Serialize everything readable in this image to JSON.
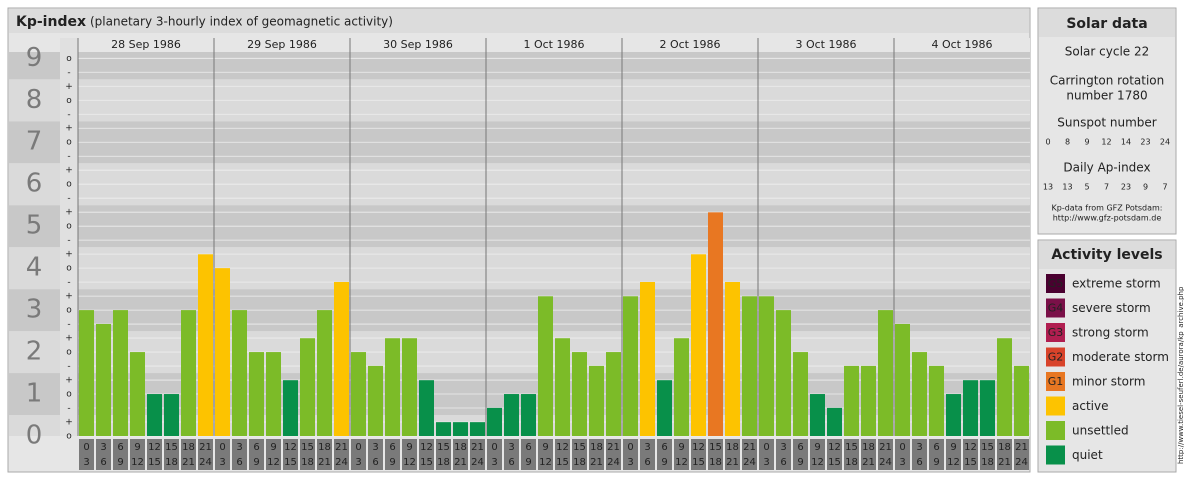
{
  "chart_data": {
    "type": "bar",
    "title": "Kp-index",
    "subtitle": "(planetary 3-hourly index of geomagnetic activity)",
    "days": [
      "28 Sep 1986",
      "29 Sep 1986",
      "30 Sep 1986",
      "1 Oct 1986",
      "2 Oct 1986",
      "3 Oct 1986",
      "4 Oct 1986"
    ],
    "slots": [
      [
        "0",
        "3"
      ],
      [
        "3",
        "6"
      ],
      [
        "6",
        "9"
      ],
      [
        "9",
        "12"
      ],
      [
        "12",
        "15"
      ],
      [
        "15",
        "18"
      ],
      [
        "18",
        "21"
      ],
      [
        "21",
        "24"
      ]
    ],
    "values": [
      3,
      2.67,
      3,
      2,
      1,
      1,
      3,
      4.33,
      4,
      3,
      2,
      2,
      1.33,
      2.33,
      3,
      3.67,
      2,
      1.67,
      2.33,
      2.33,
      1.33,
      0.33,
      0.33,
      0.33,
      0.67,
      1,
      1,
      3.33,
      2.33,
      2,
      1.67,
      2,
      3.33,
      3.67,
      1.33,
      2.33,
      4.33,
      5.33,
      3.67,
      3.33,
      3.33,
      3,
      2,
      1,
      0.67,
      1.67,
      1.67,
      3,
      2.67,
      2,
      1.67,
      1,
      1.33,
      1.33,
      2.33,
      1.67
    ],
    "colors": [
      "#7cbb28",
      "#7cbb28",
      "#7cbb28",
      "#7cbb28",
      "#08904a",
      "#08904a",
      "#7cbb28",
      "#fdc300",
      "#fdc300",
      "#7cbb28",
      "#7cbb28",
      "#7cbb28",
      "#08904a",
      "#7cbb28",
      "#7cbb28",
      "#fdc300",
      "#7cbb28",
      "#7cbb28",
      "#7cbb28",
      "#7cbb28",
      "#08904a",
      "#08904a",
      "#08904a",
      "#08904a",
      "#08904a",
      "#08904a",
      "#08904a",
      "#7cbb28",
      "#7cbb28",
      "#7cbb28",
      "#7cbb28",
      "#7cbb28",
      "#7cbb28",
      "#fdc300",
      "#08904a",
      "#7cbb28",
      "#fdc300",
      "#e87722",
      "#fdc300",
      "#7cbb28",
      "#7cbb28",
      "#7cbb28",
      "#7cbb28",
      "#08904a",
      "#08904a",
      "#7cbb28",
      "#7cbb28",
      "#7cbb28",
      "#7cbb28",
      "#7cbb28",
      "#7cbb28",
      "#08904a",
      "#08904a",
      "#08904a",
      "#7cbb28",
      "#7cbb28"
    ],
    "ylim": [
      0,
      9.15
    ],
    "yticks": [
      0,
      1,
      2,
      3,
      4,
      5,
      6,
      7,
      8,
      9
    ],
    "sub_ticks": [
      "o",
      "+",
      "-"
    ],
    "grid": true
  },
  "solar_data": {
    "title": "Solar data",
    "cycle": "Solar cycle 22",
    "carrington": [
      "Carrington rotation",
      "number 1780"
    ],
    "sunspot_title": "Sunspot number",
    "sunspot": [
      0,
      8,
      9,
      12,
      14,
      23,
      24
    ],
    "ap_title": "Daily Ap-index",
    "ap": [
      13,
      13,
      5,
      7,
      23,
      9,
      7
    ],
    "source": [
      "Kp-data from GFZ Potsdam:",
      "http://www.gfz-potsdam.de"
    ]
  },
  "activity_levels": {
    "title": "Activity levels",
    "items": [
      {
        "badge": "G5",
        "label": "extreme storm",
        "color": "#4a0030"
      },
      {
        "badge": "G4",
        "label": "severe storm",
        "color": "#7a1048"
      },
      {
        "badge": "G3",
        "label": "strong storm",
        "color": "#b01e50"
      },
      {
        "badge": "G2",
        "label": "moderate storm",
        "color": "#d8432a"
      },
      {
        "badge": "G1",
        "label": "minor storm",
        "color": "#e87722"
      },
      {
        "label": "active",
        "color": "#fdc300"
      },
      {
        "label": "unsettled",
        "color": "#7cbb28"
      },
      {
        "label": "quiet",
        "color": "#08904a"
      }
    ]
  },
  "watermark": "http://www.tiesel-seuferl.de/aurora/kp_archive.php"
}
